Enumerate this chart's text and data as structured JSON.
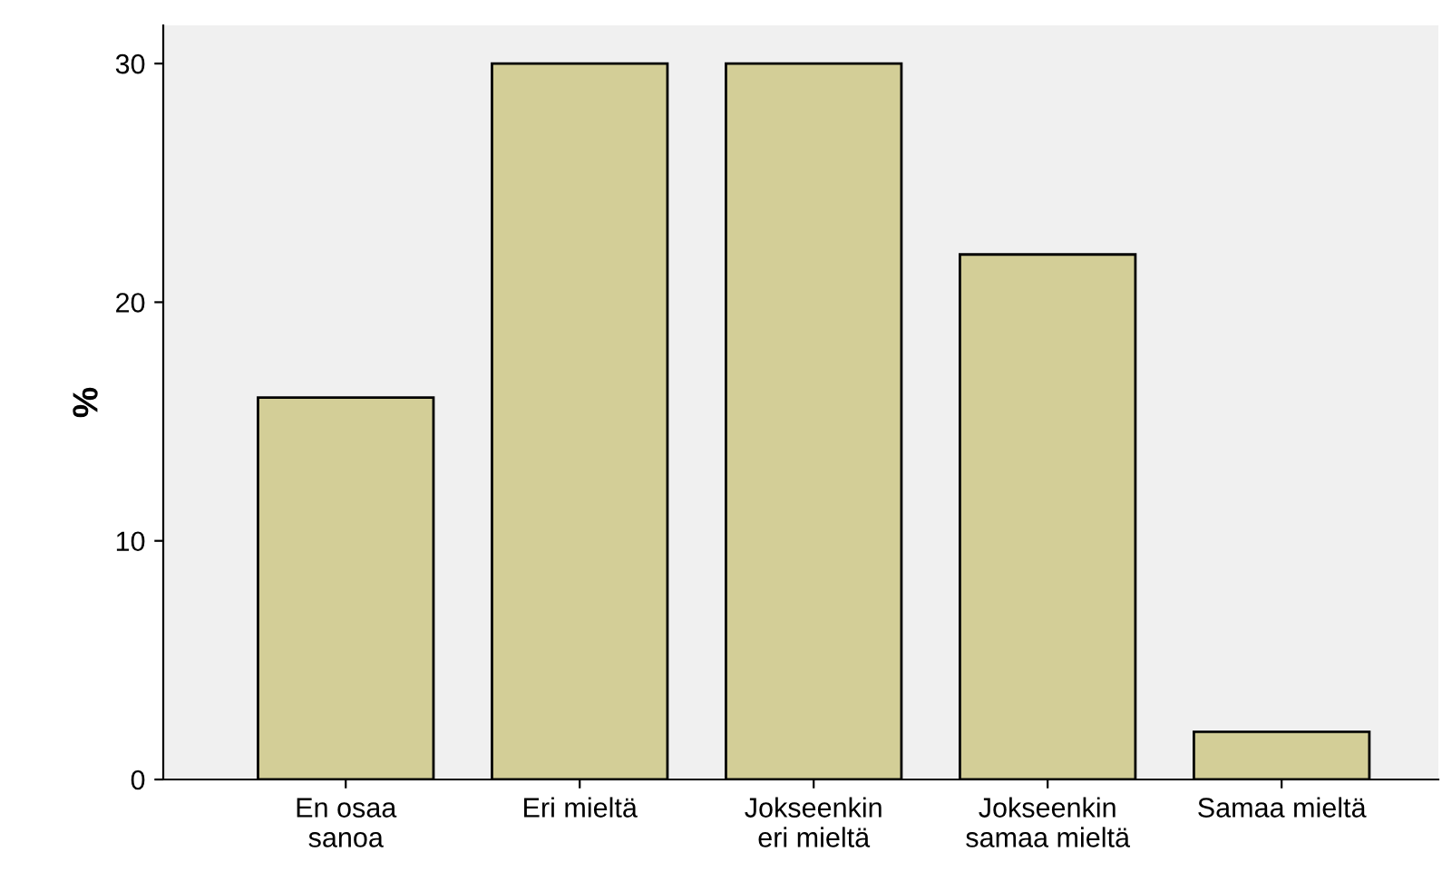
{
  "chart_data": {
    "type": "bar",
    "ylabel": "%",
    "categories": [
      "En osaa\nsanoa",
      "Eri mieltä",
      "Jokseenkin\neri mieltä",
      "Jokseenkin\nsamaa mieltä",
      "Samaa mieltä"
    ],
    "values": [
      16,
      30,
      30,
      22,
      2
    ],
    "color": "#d3ce97",
    "ylim": [
      0,
      31.6
    ],
    "yticks": [
      0,
      10,
      20,
      30
    ],
    "grid": false,
    "legend": false
  }
}
